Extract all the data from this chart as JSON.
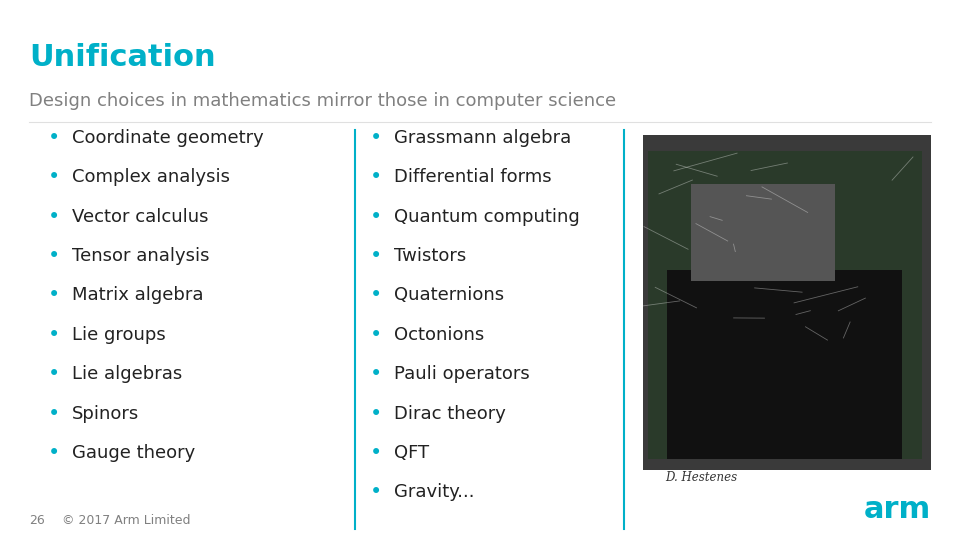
{
  "title": "Unification",
  "subtitle": "Design choices in mathematics mirror those in computer science",
  "title_color": "#00b0c8",
  "subtitle_color": "#808080",
  "bullet_color": "#00b0c8",
  "text_color": "#222222",
  "background_color": "#ffffff",
  "left_column": [
    "Coordinate geometry",
    "Complex analysis",
    "Vector calculus",
    "Tensor analysis",
    "Matrix algebra",
    "Lie groups",
    "Lie algebras",
    "Spinors",
    "Gauge theory"
  ],
  "right_column": [
    "Grassmann algebra",
    "Differential forms",
    "Quantum computing",
    "Twistors",
    "Quaternions",
    "Octonions",
    "Pauli operators",
    "Dirac theory",
    "QFT",
    "Gravity..."
  ],
  "footer_number": "26",
  "footer_text": "© 2017 Arm Limited",
  "footer_color": "#808080",
  "arm_logo_color": "#00b0c8",
  "divider_color": "#00b0c8",
  "title_fontsize": 22,
  "subtitle_fontsize": 13,
  "bullet_fontsize": 13,
  "footer_fontsize": 9,
  "arm_fontsize": 22
}
